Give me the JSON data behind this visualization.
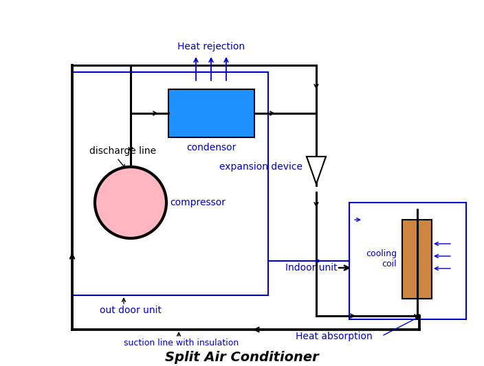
{
  "bg_color": "#ffffff",
  "blue": "#0000cc",
  "black": "#000000",
  "condenser_color": "#1e90ff",
  "compressor_color": "#ffb6c1",
  "cooling_coil_color": "#cd853f",
  "labels": {
    "heat_rejection": "Heat rejection",
    "discharge_line": "discharge line",
    "condenser": "condensor",
    "expansion_device": "expansion device",
    "compressor": "compressor",
    "out_door_unit": "out door unit",
    "indoor_unit": "Indoor unit",
    "cooling_coil": "cooling\ncoil",
    "suction_line": "suction line with insulation",
    "heat_absorption": "Heat absorption",
    "title": "Split Air Conditioner"
  }
}
